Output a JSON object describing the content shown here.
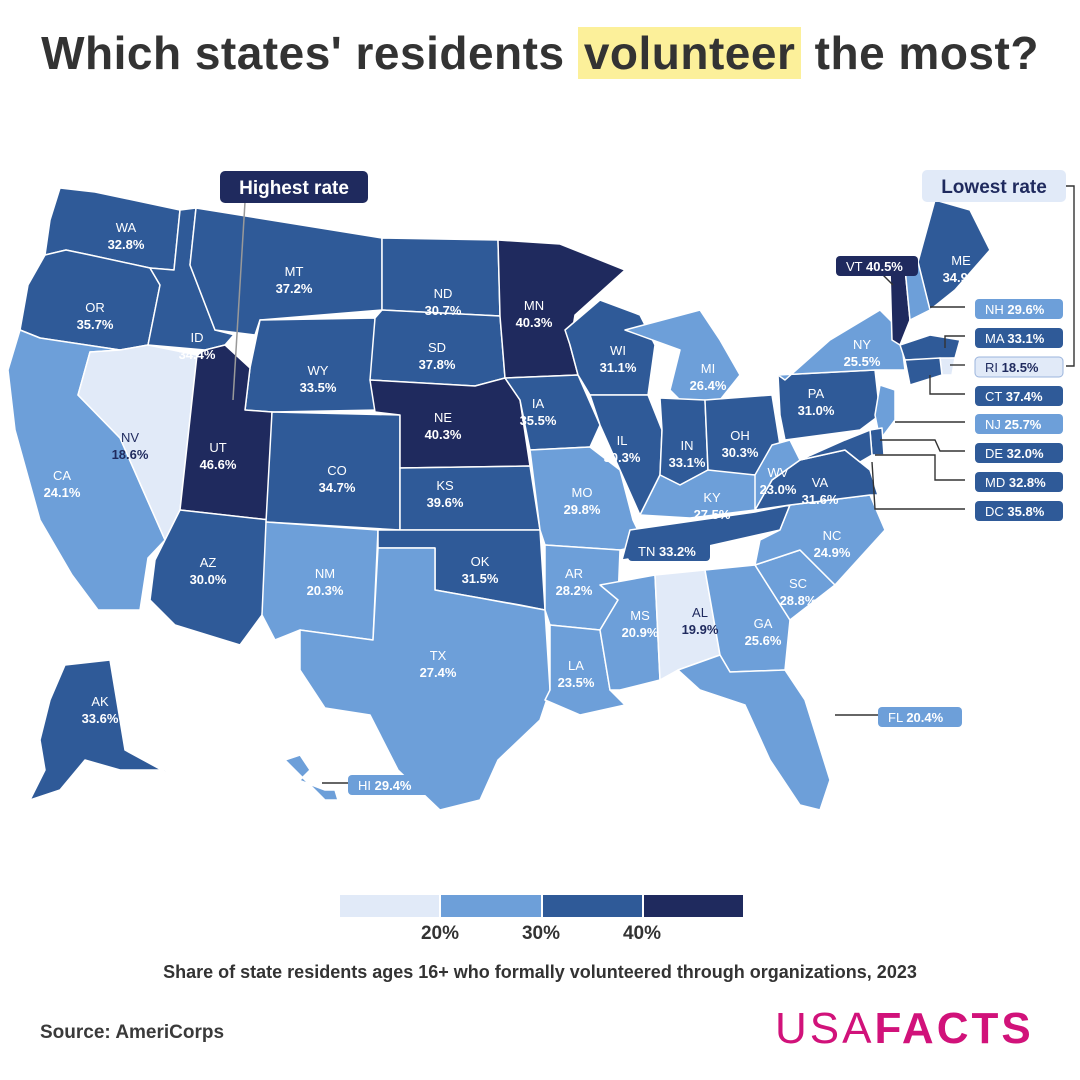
{
  "title": {
    "before": "Which states' residents ",
    "highlight": "volunteer",
    "after": " the most?"
  },
  "subtitle": "Share of state residents ages 16+ who formally volunteered through organizations, 2023",
  "source": "Source: AmeriCorps",
  "logo": {
    "part1": "USA",
    "part2": "FACTS"
  },
  "colors": {
    "lightest": "#e1eaf8",
    "light": "#6d9fd9",
    "medium": "#2f5a98",
    "dark": "#1f2a5e",
    "highlight": "#fcf09a",
    "brand": "#d1127a"
  },
  "callouts": {
    "highest": "Highest rate",
    "lowest": "Lowest rate"
  },
  "legend": {
    "ticks": [
      "20%",
      "30%",
      "40%"
    ]
  },
  "chart_data": {
    "type": "choropleth",
    "bins": [
      "<20%",
      "20–30%",
      "30–40%",
      "≥40%"
    ],
    "states": [
      {
        "abbr": "WA",
        "value": "32.8%"
      },
      {
        "abbr": "OR",
        "value": "35.7%"
      },
      {
        "abbr": "CA",
        "value": "24.1%"
      },
      {
        "abbr": "NV",
        "value": "18.6%"
      },
      {
        "abbr": "ID",
        "value": "34.4%"
      },
      {
        "abbr": "MT",
        "value": "37.2%"
      },
      {
        "abbr": "WY",
        "value": "33.5%"
      },
      {
        "abbr": "UT",
        "value": "46.6%"
      },
      {
        "abbr": "AZ",
        "value": "30.0%"
      },
      {
        "abbr": "CO",
        "value": "34.7%"
      },
      {
        "abbr": "NM",
        "value": "20.3%"
      },
      {
        "abbr": "ND",
        "value": "30.7%"
      },
      {
        "abbr": "SD",
        "value": "37.8%"
      },
      {
        "abbr": "NE",
        "value": "40.3%"
      },
      {
        "abbr": "KS",
        "value": "39.6%"
      },
      {
        "abbr": "OK",
        "value": "31.5%"
      },
      {
        "abbr": "TX",
        "value": "27.4%"
      },
      {
        "abbr": "MN",
        "value": "40.3%"
      },
      {
        "abbr": "IA",
        "value": "35.5%"
      },
      {
        "abbr": "MO",
        "value": "29.8%"
      },
      {
        "abbr": "AR",
        "value": "28.2%"
      },
      {
        "abbr": "LA",
        "value": "23.5%"
      },
      {
        "abbr": "WI",
        "value": "31.1%"
      },
      {
        "abbr": "IL",
        "value": "30.3%"
      },
      {
        "abbr": "MI",
        "value": "26.4%"
      },
      {
        "abbr": "IN",
        "value": "33.1%"
      },
      {
        "abbr": "OH",
        "value": "30.3%"
      },
      {
        "abbr": "KY",
        "value": "27.5%"
      },
      {
        "abbr": "TN",
        "value": "33.2%"
      },
      {
        "abbr": "MS",
        "value": "20.9%"
      },
      {
        "abbr": "AL",
        "value": "19.9%"
      },
      {
        "abbr": "GA",
        "value": "25.6%"
      },
      {
        "abbr": "FL",
        "value": "20.4%"
      },
      {
        "abbr": "SC",
        "value": "28.8%"
      },
      {
        "abbr": "NC",
        "value": "24.9%"
      },
      {
        "abbr": "VA",
        "value": "31.6%"
      },
      {
        "abbr": "WV",
        "value": "23.0%"
      },
      {
        "abbr": "PA",
        "value": "31.0%"
      },
      {
        "abbr": "NY",
        "value": "25.5%"
      },
      {
        "abbr": "ME",
        "value": "34.9%"
      },
      {
        "abbr": "VT",
        "value": "40.5%"
      },
      {
        "abbr": "NH",
        "value": "29.6%"
      },
      {
        "abbr": "MA",
        "value": "33.1%"
      },
      {
        "abbr": "RI",
        "value": "18.5%"
      },
      {
        "abbr": "CT",
        "value": "37.4%"
      },
      {
        "abbr": "NJ",
        "value": "25.7%"
      },
      {
        "abbr": "DE",
        "value": "32.0%"
      },
      {
        "abbr": "MD",
        "value": "32.8%"
      },
      {
        "abbr": "DC",
        "value": "35.8%"
      },
      {
        "abbr": "AK",
        "value": "33.6%"
      },
      {
        "abbr": "HI",
        "value": "29.4%"
      }
    ]
  }
}
